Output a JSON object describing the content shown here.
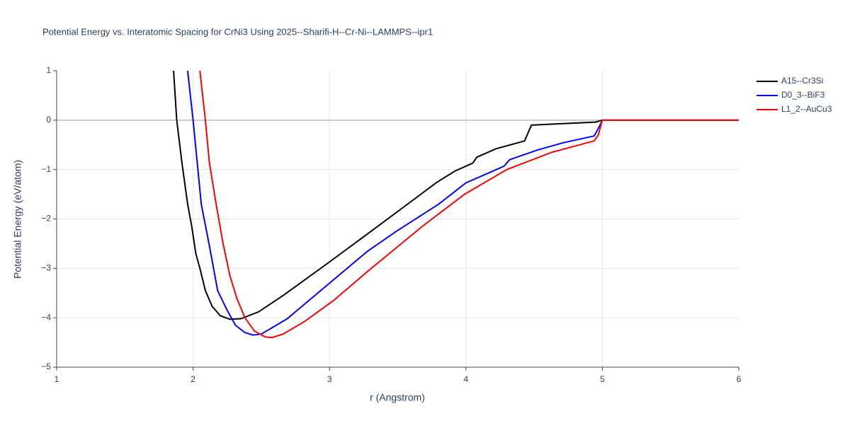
{
  "chart_data": {
    "type": "line",
    "title": "Potential Energy vs. Interatomic Spacing for CrNi3 Using 2025--Sharifi-H--Cr-Ni--LAMMPS--ipr1",
    "x_label": "r (Angstrom)",
    "y_label": "Potential Energy (eV/atom)",
    "xlim": [
      1,
      6
    ],
    "xticks": [
      1,
      2,
      3,
      4,
      5,
      6
    ],
    "ylim": [
      -5,
      1
    ],
    "yticks": [
      {
        "value": -5,
        "label": "−5"
      },
      {
        "value": -4,
        "label": "−4"
      },
      {
        "value": -3,
        "label": "−3"
      },
      {
        "value": -2,
        "label": "−2"
      },
      {
        "value": -1,
        "label": "−1"
      },
      0,
      1
    ],
    "grid": true,
    "legend": "right",
    "series": [
      {
        "name": "A15--Cr3Si",
        "color": "#000000",
        "x": [
          1.857,
          1.88,
          1.92,
          1.96,
          1.99,
          2.02,
          2.05,
          2.09,
          2.14,
          2.2,
          2.27,
          2.35,
          2.48,
          2.66,
          3.0,
          3.28,
          3.65,
          3.78,
          3.92,
          4.05,
          4.08,
          4.22,
          4.43,
          4.48,
          4.95,
          5.0,
          6.0
        ],
        "values": [
          1,
          0,
          -0.9,
          -1.7,
          -2.15,
          -2.7,
          -3.0,
          -3.45,
          -3.77,
          -3.96,
          -4.03,
          -4.02,
          -3.88,
          -3.55,
          -2.87,
          -2.3,
          -1.54,
          -1.27,
          -1.03,
          -0.87,
          -0.75,
          -0.58,
          -0.42,
          -0.1,
          -0.04,
          0,
          0
        ]
      },
      {
        "name": "D0_3--BiF3",
        "color": "#0000ff",
        "x": [
          1.96,
          2.0,
          2.06,
          2.12,
          2.18,
          2.25,
          2.31,
          2.38,
          2.44,
          2.5,
          2.58,
          2.69,
          3.0,
          3.28,
          3.49,
          3.8,
          4.0,
          4.28,
          4.32,
          4.53,
          4.71,
          4.94,
          4.97,
          5.0,
          6.0
        ],
        "values": [
          1,
          0,
          -1.7,
          -2.55,
          -3.45,
          -3.85,
          -4.15,
          -4.3,
          -4.35,
          -4.33,
          -4.2,
          -4.02,
          -3.3,
          -2.65,
          -2.25,
          -1.7,
          -1.27,
          -0.93,
          -0.8,
          -0.6,
          -0.46,
          -0.32,
          -0.17,
          0,
          0
        ]
      },
      {
        "name": "L1_2--AuCu3",
        "color": "#ff0000",
        "x": [
          2.05,
          2.09,
          2.12,
          2.17,
          2.22,
          2.27,
          2.32,
          2.38,
          2.45,
          2.53,
          2.58,
          2.66,
          2.82,
          3.03,
          3.28,
          3.68,
          3.99,
          4.3,
          4.63,
          4.94,
          4.97,
          5.0,
          6.0
        ],
        "values": [
          1,
          0,
          -0.87,
          -1.72,
          -2.5,
          -3.15,
          -3.6,
          -4.0,
          -4.27,
          -4.39,
          -4.4,
          -4.33,
          -4.07,
          -3.65,
          -3.06,
          -2.15,
          -1.5,
          -1.0,
          -0.65,
          -0.42,
          -0.3,
          0,
          0
        ]
      }
    ]
  }
}
